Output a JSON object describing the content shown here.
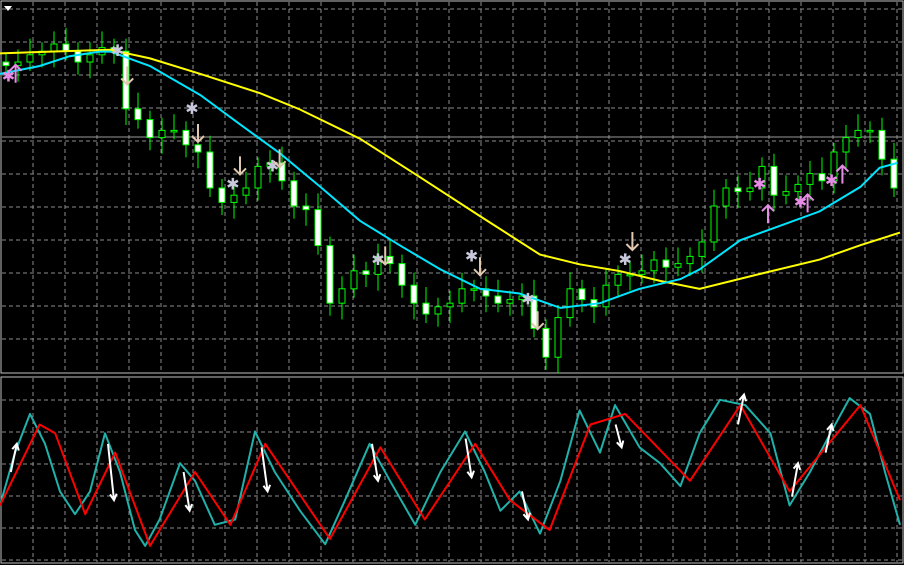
{
  "chart_data": [
    {
      "type": "candlestick",
      "panel": "price",
      "grid": true,
      "ylim": [
        0,
        100
      ],
      "colors": {
        "background": "#000000",
        "candle_outline": "#00ff00",
        "bear_fill": "#ffffff",
        "bull_fill": "#000000",
        "grid": "#8c8c8c",
        "slow_ma": "#ffff00",
        "fast_ma": "#00e5ff",
        "buy_signal": "#e68ce6",
        "sell_signal": "#e0c8b0",
        "star": "#c8c8dc"
      },
      "closes": [
        84,
        85,
        87,
        88,
        90,
        88,
        85,
        87,
        89,
        88,
        72,
        69,
        64,
        66,
        66,
        62,
        60,
        50,
        46,
        48,
        50,
        56,
        57,
        52,
        45,
        44,
        34,
        18,
        22,
        27,
        26,
        31,
        29,
        23,
        18,
        15,
        17,
        18,
        22,
        22,
        20,
        18,
        19,
        20,
        11,
        3,
        14,
        22,
        19,
        17,
        23,
        26,
        26,
        27,
        30,
        28,
        29,
        31,
        35,
        45,
        50,
        49,
        50,
        56,
        48,
        49,
        51,
        54,
        52,
        60,
        64,
        66,
        66,
        58,
        50
      ],
      "series": [
        {
          "role": "slow-ma",
          "points": [
            [
              -0.5,
              87.4
            ],
            [
              3.7,
              87.9
            ],
            [
              8.7,
              88.4
            ],
            [
              12,
              86
            ],
            [
              16.2,
              81.7
            ],
            [
              21.2,
              76.3
            ],
            [
              24.5,
              71.8
            ],
            [
              29.5,
              63.7
            ],
            [
              34.5,
              53
            ],
            [
              39.5,
              42.2
            ],
            [
              44.5,
              31.5
            ],
            [
              47.8,
              28.8
            ],
            [
              51.2,
              26.9
            ],
            [
              54.5,
              24.2
            ],
            [
              57.8,
              22
            ],
            [
              62.8,
              26.1
            ],
            [
              67.8,
              30.1
            ],
            [
              71.2,
              34.1
            ],
            [
              74.5,
              37.6
            ]
          ]
        },
        {
          "role": "fast-ma",
          "points": [
            [
              -0.5,
              81.7
            ],
            [
              2.8,
              83.9
            ],
            [
              5.3,
              86.6
            ],
            [
              7.8,
              87.9
            ],
            [
              8.7,
              87.9
            ],
            [
              12,
              83.9
            ],
            [
              16.2,
              75.8
            ],
            [
              19.5,
              67.7
            ],
            [
              22.8,
              59.7
            ],
            [
              26.2,
              50.3
            ],
            [
              29.5,
              40.9
            ],
            [
              32.8,
              34.1
            ],
            [
              36.2,
              27.4
            ],
            [
              39.5,
              22
            ],
            [
              42.8,
              20.7
            ],
            [
              46.2,
              16.7
            ],
            [
              49.5,
              18
            ],
            [
              52.8,
              22
            ],
            [
              56.2,
              24.7
            ],
            [
              57.8,
              27.4
            ],
            [
              61.2,
              35.5
            ],
            [
              64.5,
              39.5
            ],
            [
              67.8,
              43.5
            ],
            [
              71.2,
              50.3
            ],
            [
              72.8,
              55.6
            ],
            [
              74.3,
              57
            ]
          ]
        }
      ],
      "signals": [
        {
          "type": "buy-arrow",
          "index": 0.8,
          "value": 82
        },
        {
          "type": "buy-star",
          "index": 0.2,
          "value": 81
        },
        {
          "type": "sell-star",
          "index": 9.3,
          "value": 88
        },
        {
          "type": "sell-arrow",
          "index": 10.1,
          "value": 81
        },
        {
          "type": "sell-star",
          "index": 15.5,
          "value": 72
        },
        {
          "type": "sell-arrow",
          "index": 16,
          "value": 65
        },
        {
          "type": "sell-star",
          "index": 18.9,
          "value": 51
        },
        {
          "type": "sell-arrow",
          "index": 19.5,
          "value": 56
        },
        {
          "type": "sell-star",
          "index": 22.2,
          "value": 56
        },
        {
          "type": "sell-arrow",
          "index": 22.8,
          "value": 58
        },
        {
          "type": "sell-star",
          "index": 31,
          "value": 30
        },
        {
          "type": "sell-arrow",
          "index": 31.6,
          "value": 31
        },
        {
          "type": "sell-star",
          "index": 38.8,
          "value": 31
        },
        {
          "type": "sell-arrow",
          "index": 39.5,
          "value": 28
        },
        {
          "type": "sell-star",
          "index": 43.5,
          "value": 19
        },
        {
          "type": "sell-arrow",
          "index": 44.3,
          "value": 13
        },
        {
          "type": "sell-star",
          "index": 51.6,
          "value": 30
        },
        {
          "type": "sell-arrow",
          "index": 52.2,
          "value": 35
        },
        {
          "type": "buy-star",
          "index": 62.8,
          "value": 51
        },
        {
          "type": "buy-arrow",
          "index": 63.5,
          "value": 43
        },
        {
          "type": "buy-star",
          "index": 66.2,
          "value": 46
        },
        {
          "type": "buy-arrow",
          "index": 66.8,
          "value": 46
        },
        {
          "type": "buy-star",
          "index": 68.8,
          "value": 52
        },
        {
          "type": "buy-arrow",
          "index": 69.7,
          "value": 54
        }
      ]
    },
    {
      "type": "line",
      "panel": "oscillator",
      "grid": true,
      "ylim": [
        0,
        100
      ],
      "colors": {
        "main": "#20b2aa",
        "signal": "#ff0000",
        "arrows": "#ffffff"
      },
      "series": [
        {
          "role": "main",
          "points": [
            [
              -0.5,
              31
            ],
            [
              0.75,
              61
            ],
            [
              2,
              83
            ],
            [
              3.25,
              66
            ],
            [
              4.5,
              39
            ],
            [
              5.75,
              26
            ],
            [
              7,
              39
            ],
            [
              8.25,
              72
            ],
            [
              9.5,
              50
            ],
            [
              10.75,
              17
            ],
            [
              11.6,
              8
            ],
            [
              12.8,
              23
            ],
            [
              14.5,
              55
            ],
            [
              15.75,
              45
            ],
            [
              17.4,
              20
            ],
            [
              19.1,
              23
            ],
            [
              20.75,
              73
            ],
            [
              22.4,
              50
            ],
            [
              24.5,
              28
            ],
            [
              26.6,
              9
            ],
            [
              28.25,
              34
            ],
            [
              30.3,
              66
            ],
            [
              32,
              45
            ],
            [
              34.1,
              20
            ],
            [
              36.2,
              50
            ],
            [
              38.25,
              73
            ],
            [
              39.9,
              50
            ],
            [
              41.2,
              28
            ],
            [
              42.8,
              39
            ],
            [
              44.5,
              15
            ],
            [
              46.2,
              45
            ],
            [
              47.8,
              85
            ],
            [
              49.5,
              61
            ],
            [
              50.75,
              88
            ],
            [
              52.8,
              64
            ],
            [
              54.5,
              55
            ],
            [
              56.2,
              42
            ],
            [
              57.8,
              72
            ],
            [
              59.5,
              91
            ],
            [
              61.6,
              88
            ],
            [
              63.7,
              72
            ],
            [
              65.3,
              31
            ],
            [
              67,
              50
            ],
            [
              68.7,
              72
            ],
            [
              70.3,
              92
            ],
            [
              72,
              83
            ],
            [
              73.25,
              50
            ],
            [
              74.5,
              20
            ]
          ]
        },
        {
          "role": "signal",
          "points": [
            [
              -0.5,
              31
            ],
            [
              2.8,
              77
            ],
            [
              4.1,
              72
            ],
            [
              6.6,
              26
            ],
            [
              9.1,
              61
            ],
            [
              12,
              8
            ],
            [
              15.75,
              50
            ],
            [
              18.7,
              20
            ],
            [
              21.6,
              66
            ],
            [
              27,
              12
            ],
            [
              31.2,
              64
            ],
            [
              34.9,
              23
            ],
            [
              39.1,
              66
            ],
            [
              42,
              34
            ],
            [
              45.3,
              17
            ],
            [
              48.7,
              77
            ],
            [
              51.6,
              83
            ],
            [
              57,
              45
            ],
            [
              61.2,
              88
            ],
            [
              65.3,
              39
            ],
            [
              71.2,
              88
            ],
            [
              74.5,
              34
            ]
          ]
        }
      ],
      "arrows": [
        {
          "index": 0.4,
          "from": 50,
          "to": 66,
          "direction": "up"
        },
        {
          "index": 8.5,
          "from": 66,
          "to": 34,
          "direction": "down"
        },
        {
          "index": 14.8,
          "from": 50,
          "to": 28,
          "direction": "down"
        },
        {
          "index": 21.3,
          "from": 64,
          "to": 39,
          "direction": "down"
        },
        {
          "index": 30.5,
          "from": 66,
          "to": 45,
          "direction": "down"
        },
        {
          "index": 38.3,
          "from": 69,
          "to": 47,
          "direction": "down"
        },
        {
          "index": 43,
          "from": 39,
          "to": 23,
          "direction": "down"
        },
        {
          "index": 50.8,
          "from": 77,
          "to": 64,
          "direction": "down"
        },
        {
          "index": 61,
          "from": 77,
          "to": 94,
          "direction": "up"
        },
        {
          "index": 65.5,
          "from": 36,
          "to": 55,
          "direction": "up"
        },
        {
          "index": 68.3,
          "from": 61,
          "to": 77,
          "direction": "up"
        }
      ]
    }
  ]
}
